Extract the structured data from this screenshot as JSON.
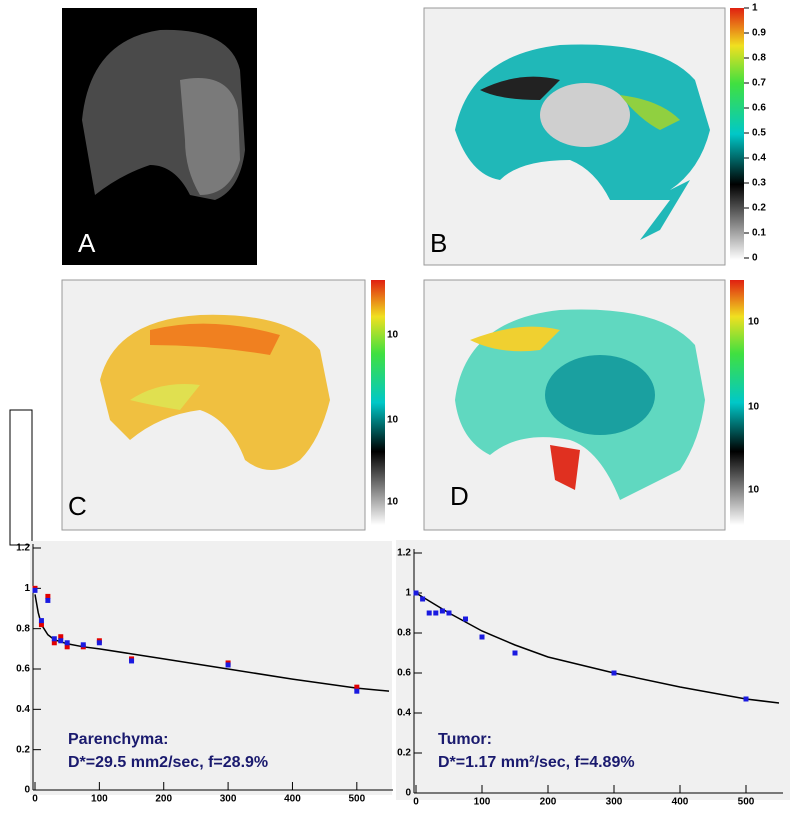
{
  "panels": [
    {
      "label": "A"
    },
    {
      "label": "B"
    },
    {
      "label": "C"
    },
    {
      "label": "D"
    }
  ],
  "colorbars": [
    {
      "lim": [
        0,
        1
      ],
      "ticks": [
        0,
        0.1,
        0.2,
        0.3,
        0.4,
        0.5,
        0.6,
        0.7,
        0.8,
        0.9,
        1
      ]
    },
    {
      "ticks": [
        "10",
        "10",
        "10"
      ]
    },
    {
      "ticks": [
        "10",
        "10",
        "10"
      ]
    }
  ],
  "chart_data": [
    {
      "type": "scatter",
      "annotation": [
        "Parenchyma:",
        "D*=29.5 mm2/sec, f=28.9%"
      ],
      "x": [
        0,
        10,
        20,
        30,
        40,
        50,
        75,
        100,
        150,
        300,
        500
      ],
      "series": [
        {
          "color": "#e00000",
          "values": [
            1.0,
            0.82,
            0.96,
            0.73,
            0.76,
            0.71,
            0.71,
            0.74,
            0.65,
            0.63,
            0.51
          ]
        },
        {
          "color": "#1a1ae0",
          "values": [
            0.99,
            0.84,
            0.94,
            0.75,
            0.74,
            0.73,
            0.72,
            0.73,
            0.64,
            0.62,
            0.49
          ]
        }
      ],
      "fit": {
        "x": [
          0,
          5,
          10,
          20,
          30,
          50,
          75,
          100,
          150,
          200,
          300,
          400,
          500,
          550
        ],
        "y": [
          0.97,
          0.88,
          0.82,
          0.77,
          0.745,
          0.725,
          0.71,
          0.7,
          0.675,
          0.65,
          0.6,
          0.55,
          0.505,
          0.49
        ]
      },
      "xlim": [
        0,
        550
      ],
      "xticks": [
        0,
        100,
        200,
        300,
        400,
        500
      ],
      "ylim": [
        0,
        1.2
      ],
      "yticks": [
        0,
        0.2,
        0.4,
        0.6,
        0.8,
        1,
        1.2
      ]
    },
    {
      "type": "scatter",
      "annotation": [
        "Tumor:",
        "D*=1.17 mm²/sec, f=4.89%"
      ],
      "x": [
        0,
        10,
        20,
        30,
        40,
        50,
        75,
        100,
        150,
        300,
        500
      ],
      "series": [
        {
          "color": "#1a1ae0",
          "values": [
            1.0,
            0.97,
            0.9,
            0.9,
            0.91,
            0.9,
            0.87,
            0.78,
            0.7,
            0.6,
            0.47
          ]
        }
      ],
      "fit": {
        "x": [
          0,
          50,
          100,
          150,
          200,
          300,
          400,
          500,
          550
        ],
        "y": [
          1.0,
          0.9,
          0.81,
          0.74,
          0.68,
          0.6,
          0.53,
          0.47,
          0.45
        ]
      },
      "xlim": [
        0,
        550
      ],
      "xticks": [
        0,
        100,
        200,
        300,
        400,
        500
      ],
      "ylim": [
        0,
        1.2
      ],
      "yticks": [
        0,
        0.2,
        0.4,
        0.6,
        0.8,
        1,
        1.2
      ]
    }
  ]
}
